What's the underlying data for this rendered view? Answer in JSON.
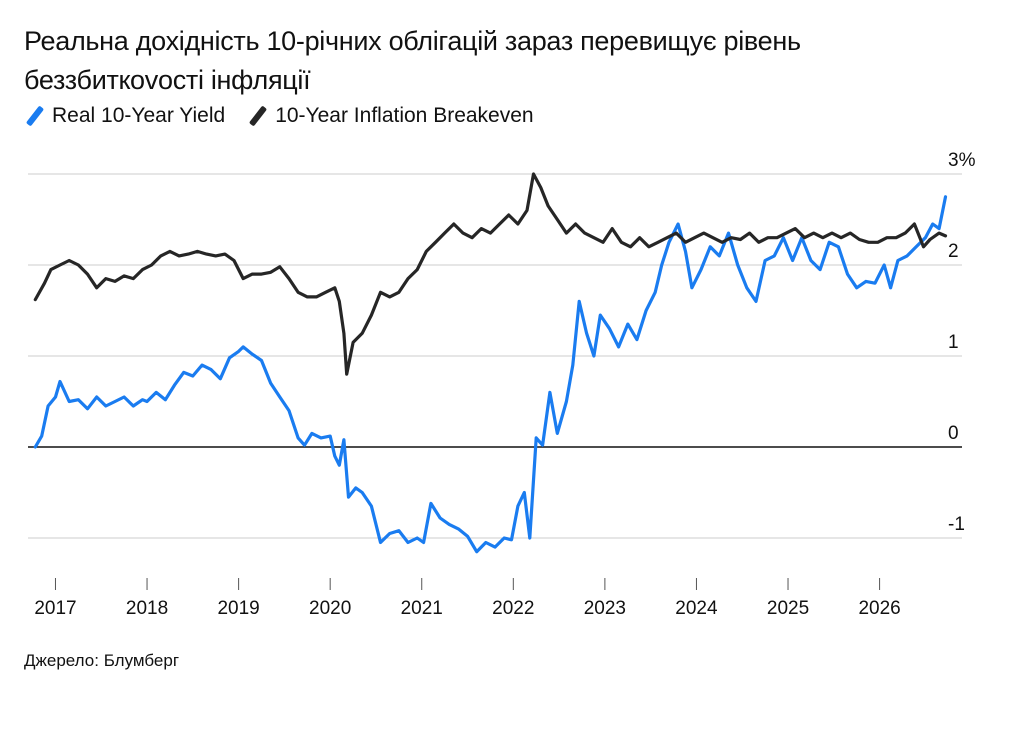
{
  "title": "Реальна дохідність 10-річних облігацій зараз перевищує рівень беззбиткovості інфляції",
  "source": "Джерело: Блумберг",
  "colors": {
    "real_yield": "#1a7cf0",
    "breakeven": "#262626",
    "zero_line": "#111111",
    "grid": "#cccccc"
  },
  "chart_data": {
    "type": "line",
    "title": "Реальна дохідність 10-річних облігацій зараз перевищує рівень беззбиткovості інфляції",
    "ylim": [
      -1.3,
      3
    ],
    "xlim": [
      2016.7,
      2026.9
    ],
    "y_ticks": [
      {
        "value": 3,
        "label": "3%"
      },
      {
        "value": 2,
        "label": "2"
      },
      {
        "value": 1,
        "label": "1"
      },
      {
        "value": 0,
        "label": "0"
      },
      {
        "value": -1,
        "label": "-1"
      }
    ],
    "x_ticks": [
      {
        "value": 2017,
        "label": "2017"
      },
      {
        "value": 2018,
        "label": "2018"
      },
      {
        "value": 2019,
        "label": "2019"
      },
      {
        "value": 2020,
        "label": "2020"
      },
      {
        "value": 2021,
        "label": "2021"
      },
      {
        "value": 2022,
        "label": "2022"
      },
      {
        "value": 2023,
        "label": "2023"
      },
      {
        "value": 2024,
        "label": "2024"
      },
      {
        "value": 2025,
        "label": "2025"
      },
      {
        "value": 2026,
        "label": "2026"
      }
    ],
    "legend_position": "top-left",
    "grid": true,
    "series": [
      {
        "name": "Real 10-Year Yield",
        "color": "#1a7cf0",
        "points": [
          [
            2016.78,
            0.0
          ],
          [
            2016.85,
            0.12
          ],
          [
            2016.92,
            0.45
          ],
          [
            2017.0,
            0.55
          ],
          [
            2017.05,
            0.72
          ],
          [
            2017.15,
            0.5
          ],
          [
            2017.25,
            0.52
          ],
          [
            2017.35,
            0.42
          ],
          [
            2017.45,
            0.55
          ],
          [
            2017.55,
            0.45
          ],
          [
            2017.65,
            0.5
          ],
          [
            2017.75,
            0.55
          ],
          [
            2017.85,
            0.45
          ],
          [
            2017.95,
            0.52
          ],
          [
            2018.0,
            0.5
          ],
          [
            2018.1,
            0.6
          ],
          [
            2018.2,
            0.52
          ],
          [
            2018.3,
            0.68
          ],
          [
            2018.4,
            0.82
          ],
          [
            2018.5,
            0.78
          ],
          [
            2018.6,
            0.9
          ],
          [
            2018.7,
            0.85
          ],
          [
            2018.8,
            0.75
          ],
          [
            2018.9,
            0.98
          ],
          [
            2019.0,
            1.05
          ],
          [
            2019.05,
            1.1
          ],
          [
            2019.15,
            1.02
          ],
          [
            2019.25,
            0.95
          ],
          [
            2019.35,
            0.7
          ],
          [
            2019.45,
            0.55
          ],
          [
            2019.55,
            0.4
          ],
          [
            2019.65,
            0.1
          ],
          [
            2019.72,
            0.02
          ],
          [
            2019.8,
            0.15
          ],
          [
            2019.9,
            0.1
          ],
          [
            2020.0,
            0.12
          ],
          [
            2020.05,
            -0.1
          ],
          [
            2020.1,
            -0.2
          ],
          [
            2020.15,
            0.08
          ],
          [
            2020.2,
            -0.55
          ],
          [
            2020.28,
            -0.45
          ],
          [
            2020.35,
            -0.5
          ],
          [
            2020.45,
            -0.65
          ],
          [
            2020.55,
            -1.05
          ],
          [
            2020.65,
            -0.95
          ],
          [
            2020.75,
            -0.92
          ],
          [
            2020.85,
            -1.05
          ],
          [
            2020.95,
            -1.0
          ],
          [
            2021.02,
            -1.05
          ],
          [
            2021.1,
            -0.62
          ],
          [
            2021.2,
            -0.78
          ],
          [
            2021.3,
            -0.85
          ],
          [
            2021.4,
            -0.9
          ],
          [
            2021.5,
            -0.98
          ],
          [
            2021.6,
            -1.15
          ],
          [
            2021.7,
            -1.05
          ],
          [
            2021.8,
            -1.1
          ],
          [
            2021.9,
            -1.0
          ],
          [
            2021.98,
            -1.02
          ],
          [
            2022.05,
            -0.65
          ],
          [
            2022.12,
            -0.5
          ],
          [
            2022.18,
            -1.0
          ],
          [
            2022.25,
            0.1
          ],
          [
            2022.32,
            0.02
          ],
          [
            2022.4,
            0.6
          ],
          [
            2022.48,
            0.15
          ],
          [
            2022.58,
            0.5
          ],
          [
            2022.65,
            0.9
          ],
          [
            2022.72,
            1.6
          ],
          [
            2022.8,
            1.25
          ],
          [
            2022.88,
            1.0
          ],
          [
            2022.95,
            1.45
          ],
          [
            2023.05,
            1.3
          ],
          [
            2023.15,
            1.1
          ],
          [
            2023.25,
            1.35
          ],
          [
            2023.35,
            1.18
          ],
          [
            2023.45,
            1.5
          ],
          [
            2023.55,
            1.7
          ],
          [
            2023.62,
            2.0
          ],
          [
            2023.7,
            2.25
          ],
          [
            2023.8,
            2.45
          ],
          [
            2023.88,
            2.15
          ],
          [
            2023.95,
            1.75
          ],
          [
            2024.05,
            1.95
          ],
          [
            2024.15,
            2.2
          ],
          [
            2024.25,
            2.1
          ],
          [
            2024.35,
            2.35
          ],
          [
            2024.45,
            2.0
          ],
          [
            2024.55,
            1.75
          ],
          [
            2024.65,
            1.6
          ],
          [
            2024.75,
            2.05
          ],
          [
            2024.85,
            2.1
          ],
          [
            2024.95,
            2.3
          ],
          [
            2025.05,
            2.05
          ],
          [
            2025.15,
            2.3
          ],
          [
            2025.25,
            2.05
          ],
          [
            2025.35,
            1.95
          ],
          [
            2025.45,
            2.25
          ],
          [
            2025.55,
            2.2
          ],
          [
            2025.65,
            1.9
          ],
          [
            2025.75,
            1.75
          ],
          [
            2025.85,
            1.82
          ],
          [
            2025.95,
            1.8
          ],
          [
            2026.05,
            2.0
          ],
          [
            2026.12,
            1.75
          ],
          [
            2026.2,
            2.05
          ],
          [
            2026.3,
            2.1
          ],
          [
            2026.4,
            2.2
          ],
          [
            2026.5,
            2.3
          ],
          [
            2026.58,
            2.45
          ],
          [
            2026.65,
            2.4
          ],
          [
            2026.72,
            2.75
          ]
        ]
      },
      {
        "name": "10-Year Inflation Breakeven",
        "color": "#262626",
        "points": [
          [
            2016.78,
            1.62
          ],
          [
            2016.88,
            1.8
          ],
          [
            2016.95,
            1.95
          ],
          [
            2017.05,
            2.0
          ],
          [
            2017.15,
            2.05
          ],
          [
            2017.25,
            2.0
          ],
          [
            2017.35,
            1.9
          ],
          [
            2017.45,
            1.75
          ],
          [
            2017.55,
            1.85
          ],
          [
            2017.65,
            1.82
          ],
          [
            2017.75,
            1.88
          ],
          [
            2017.85,
            1.85
          ],
          [
            2017.95,
            1.95
          ],
          [
            2018.05,
            2.0
          ],
          [
            2018.15,
            2.1
          ],
          [
            2018.25,
            2.15
          ],
          [
            2018.35,
            2.1
          ],
          [
            2018.45,
            2.12
          ],
          [
            2018.55,
            2.15
          ],
          [
            2018.65,
            2.12
          ],
          [
            2018.75,
            2.1
          ],
          [
            2018.85,
            2.12
          ],
          [
            2018.95,
            2.05
          ],
          [
            2019.05,
            1.85
          ],
          [
            2019.15,
            1.9
          ],
          [
            2019.25,
            1.9
          ],
          [
            2019.35,
            1.92
          ],
          [
            2019.45,
            1.98
          ],
          [
            2019.55,
            1.85
          ],
          [
            2019.65,
            1.7
          ],
          [
            2019.75,
            1.65
          ],
          [
            2019.85,
            1.65
          ],
          [
            2019.95,
            1.7
          ],
          [
            2020.05,
            1.75
          ],
          [
            2020.1,
            1.6
          ],
          [
            2020.15,
            1.25
          ],
          [
            2020.18,
            0.8
          ],
          [
            2020.25,
            1.15
          ],
          [
            2020.35,
            1.25
          ],
          [
            2020.45,
            1.45
          ],
          [
            2020.55,
            1.7
          ],
          [
            2020.65,
            1.65
          ],
          [
            2020.75,
            1.7
          ],
          [
            2020.85,
            1.85
          ],
          [
            2020.95,
            1.95
          ],
          [
            2021.05,
            2.15
          ],
          [
            2021.15,
            2.25
          ],
          [
            2021.25,
            2.35
          ],
          [
            2021.35,
            2.45
          ],
          [
            2021.45,
            2.35
          ],
          [
            2021.55,
            2.3
          ],
          [
            2021.65,
            2.4
          ],
          [
            2021.75,
            2.35
          ],
          [
            2021.85,
            2.45
          ],
          [
            2021.95,
            2.55
          ],
          [
            2022.05,
            2.45
          ],
          [
            2022.15,
            2.6
          ],
          [
            2022.22,
            3.0
          ],
          [
            2022.3,
            2.85
          ],
          [
            2022.38,
            2.65
          ],
          [
            2022.48,
            2.5
          ],
          [
            2022.58,
            2.35
          ],
          [
            2022.68,
            2.45
          ],
          [
            2022.78,
            2.35
          ],
          [
            2022.88,
            2.3
          ],
          [
            2022.98,
            2.25
          ],
          [
            2023.08,
            2.4
          ],
          [
            2023.18,
            2.25
          ],
          [
            2023.28,
            2.2
          ],
          [
            2023.38,
            2.3
          ],
          [
            2023.48,
            2.2
          ],
          [
            2023.58,
            2.25
          ],
          [
            2023.68,
            2.3
          ],
          [
            2023.78,
            2.35
          ],
          [
            2023.88,
            2.25
          ],
          [
            2023.98,
            2.3
          ],
          [
            2024.08,
            2.35
          ],
          [
            2024.18,
            2.3
          ],
          [
            2024.28,
            2.25
          ],
          [
            2024.38,
            2.3
          ],
          [
            2024.48,
            2.28
          ],
          [
            2024.58,
            2.35
          ],
          [
            2024.68,
            2.25
          ],
          [
            2024.78,
            2.3
          ],
          [
            2024.88,
            2.3
          ],
          [
            2024.98,
            2.35
          ],
          [
            2025.08,
            2.4
          ],
          [
            2025.18,
            2.3
          ],
          [
            2025.28,
            2.35
          ],
          [
            2025.38,
            2.3
          ],
          [
            2025.48,
            2.35
          ],
          [
            2025.58,
            2.3
          ],
          [
            2025.68,
            2.35
          ],
          [
            2025.78,
            2.28
          ],
          [
            2025.88,
            2.25
          ],
          [
            2025.98,
            2.25
          ],
          [
            2026.08,
            2.3
          ],
          [
            2026.18,
            2.3
          ],
          [
            2026.28,
            2.35
          ],
          [
            2026.38,
            2.45
          ],
          [
            2026.48,
            2.2
          ],
          [
            2026.55,
            2.28
          ],
          [
            2026.65,
            2.35
          ],
          [
            2026.72,
            2.32
          ]
        ]
      }
    ]
  }
}
